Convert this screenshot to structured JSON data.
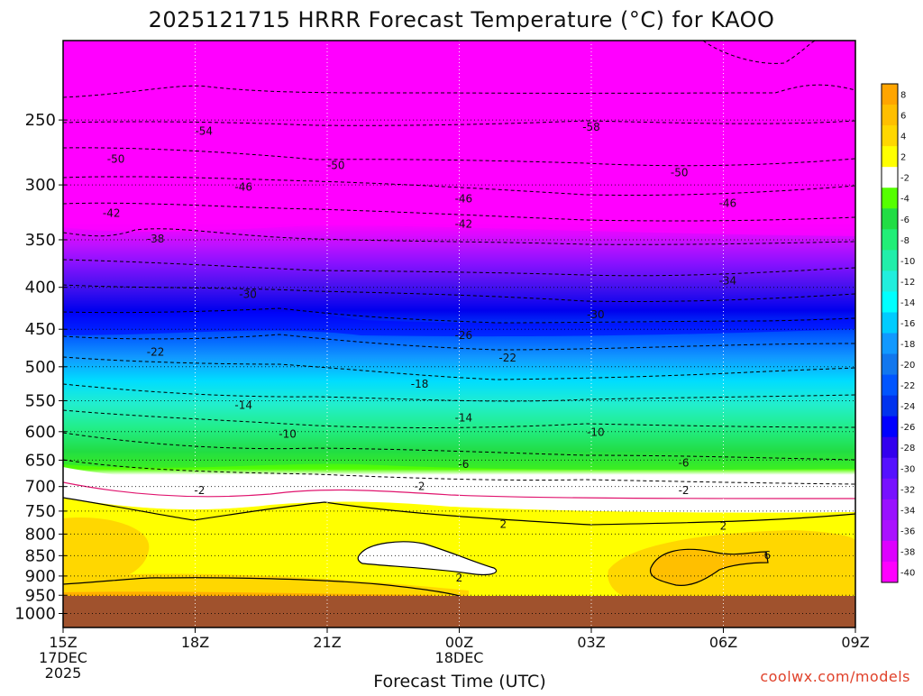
{
  "chart_data": {
    "type": "contour",
    "title": "2025121715 HRRR Forecast Temperature (°C) for KAOO",
    "xlabel": "Forecast Time (UTC)",
    "ylabel": "",
    "x_ticks": [
      {
        "hour": 0,
        "lines": [
          "15Z",
          "17DEC",
          "2025"
        ]
      },
      {
        "hour": 3,
        "lines": [
          "18Z"
        ]
      },
      {
        "hour": 6,
        "lines": [
          "21Z"
        ]
      },
      {
        "hour": 9,
        "lines": [
          "00Z",
          "18DEC"
        ]
      },
      {
        "hour": 12,
        "lines": [
          "03Z"
        ]
      },
      {
        "hour": 15,
        "lines": [
          "06Z"
        ]
      },
      {
        "hour": 18,
        "lines": [
          "09Z"
        ]
      }
    ],
    "y_ticks": [
      "250",
      "300",
      "350",
      "400",
      "450",
      "500",
      "550",
      "600",
      "650",
      "700",
      "750",
      "800",
      "850",
      "900",
      "950",
      "1000"
    ],
    "y_scale": "log-pressure",
    "xlim_hours": [
      0,
      18
    ],
    "ylim_hPa": [
      200,
      1040
    ],
    "ground_level_hPa": 960,
    "colorbar": {
      "labels": [
        "8",
        "6",
        "4",
        "2",
        "-2",
        "-4",
        "-6",
        "-8",
        "-10",
        "-12",
        "-14",
        "-16",
        "-18",
        "-20",
        "-22",
        "-24",
        "-26",
        "-28",
        "-30",
        "-32",
        "-34",
        "-36",
        "-38",
        "-40"
      ],
      "colors": [
        "#ffa500",
        "#ffbf00",
        "#ffd700",
        "#ffff00",
        "#ffffff",
        "#55ff00",
        "#22dd44",
        "#22ee77",
        "#22eeaa",
        "#22eedd",
        "#00ffff",
        "#00ccff",
        "#1199ff",
        "#1177ee",
        "#0055ff",
        "#0033ee",
        "#0000ff",
        "#3300ee",
        "#5511ff",
        "#7711ff",
        "#9911ff",
        "#aa11ff",
        "#dd00ff",
        "#ff00ff"
      ]
    },
    "contour_labels": [
      {
        "text": "-54",
        "hour": 3.2,
        "p": 258
      },
      {
        "text": "-58",
        "hour": 12.0,
        "p": 255
      },
      {
        "text": "-50",
        "hour": 1.2,
        "p": 279
      },
      {
        "text": "-50",
        "hour": 6.2,
        "p": 284
      },
      {
        "text": "-50",
        "hour": 14.0,
        "p": 290
      },
      {
        "text": "-46",
        "hour": 4.1,
        "p": 302
      },
      {
        "text": "-46",
        "hour": 9.1,
        "p": 312
      },
      {
        "text": "-46",
        "hour": 15.1,
        "p": 316
      },
      {
        "text": "-42",
        "hour": 1.1,
        "p": 325
      },
      {
        "text": "-42",
        "hour": 9.1,
        "p": 335
      },
      {
        "text": "-38",
        "hour": 2.1,
        "p": 349
      },
      {
        "text": "-34",
        "hour": 15.1,
        "p": 393
      },
      {
        "text": "-30",
        "hour": 4.2,
        "p": 408
      },
      {
        "text": "-30",
        "hour": 12.1,
        "p": 432
      },
      {
        "text": "-26",
        "hour": 9.1,
        "p": 458
      },
      {
        "text": "-22",
        "hour": 2.1,
        "p": 480
      },
      {
        "text": "-22",
        "hour": 10.1,
        "p": 488
      },
      {
        "text": "-18",
        "hour": 8.1,
        "p": 525
      },
      {
        "text": "-14",
        "hour": 4.1,
        "p": 557
      },
      {
        "text": "-14",
        "hour": 9.1,
        "p": 577
      },
      {
        "text": "-10",
        "hour": 5.1,
        "p": 604
      },
      {
        "text": "-10",
        "hour": 12.1,
        "p": 601
      },
      {
        "text": "-6",
        "hour": 9.1,
        "p": 658
      },
      {
        "text": "-6",
        "hour": 14.1,
        "p": 655
      },
      {
        "text": "-2",
        "hour": 3.1,
        "p": 708
      },
      {
        "text": "-2",
        "hour": 8.1,
        "p": 700
      },
      {
        "text": "-2",
        "hour": 14.1,
        "p": 708
      },
      {
        "text": "2",
        "hour": 10.0,
        "p": 778
      },
      {
        "text": "2",
        "hour": 15.0,
        "p": 782
      },
      {
        "text": "2",
        "hour": 9.0,
        "p": 905
      },
      {
        "text": "6",
        "hour": 16.0,
        "p": 849
      }
    ]
  },
  "credit": "coolwx.com/models"
}
